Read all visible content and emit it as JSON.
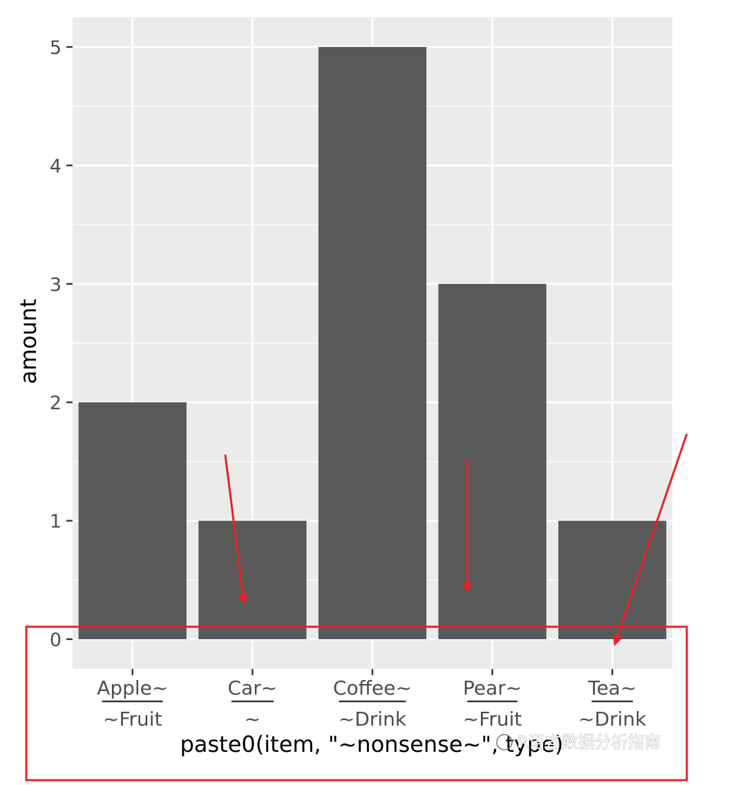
{
  "chart_data": {
    "type": "bar",
    "categories": [
      "Apple",
      "Car",
      "Coffee",
      "Pear",
      "Tea"
    ],
    "category_labels": [
      {
        "top": "Apple~",
        "bottom": "~Fruit"
      },
      {
        "top": "Car~",
        "bottom": "~"
      },
      {
        "top": "Coffee~",
        "bottom": "~Drink"
      },
      {
        "top": "Pear~",
        "bottom": "~Fruit"
      },
      {
        "top": "Tea~",
        "bottom": "~Drink"
      }
    ],
    "values": [
      2,
      1,
      5,
      3,
      1
    ],
    "ylim": [
      0,
      5
    ],
    "yticks": [
      "0",
      "1",
      "2",
      "3",
      "4",
      "5"
    ],
    "xlabel": "paste0(item, \"~nonsense~\", type)",
    "ylabel": "amount",
    "grid": true,
    "bar_color": "#595959",
    "panel_color": "#ebebeb",
    "annotation_color": "#e8202a"
  },
  "watermark": "R语言数据分析指南"
}
